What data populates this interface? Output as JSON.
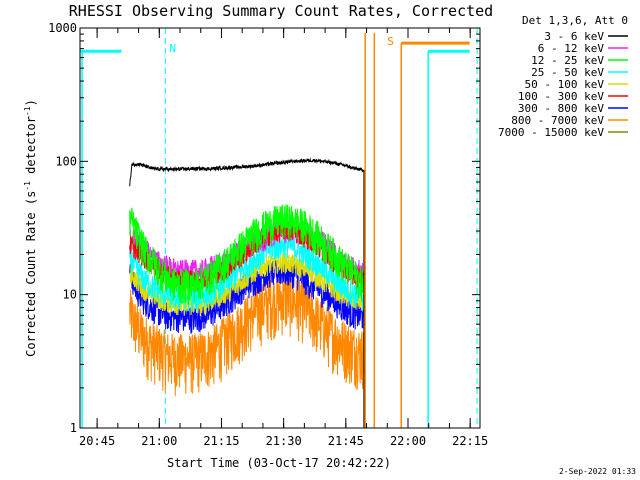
{
  "chart_data": {
    "type": "line",
    "title": "RHESSI Observing Summary Count Rates, Corrected",
    "xlabel": "Start Time (03-Oct-17 20:42:22)",
    "ylabel_main": "Corrected Count Rate (s",
    "ylabel_sup1": "-1",
    "ylabel_mid": " detector",
    "ylabel_sup2": "-1",
    "ylabel_end": ")",
    "y_scale": "log",
    "ylim": [
      1,
      1000
    ],
    "xlim_minutes_after_start": [
      -1.5,
      95
    ],
    "y_ticks": [
      {
        "value": 1,
        "label": "1"
      },
      {
        "value": 10,
        "label": "10"
      },
      {
        "value": 100,
        "label": "100"
      },
      {
        "value": 1000,
        "label": "1000"
      }
    ],
    "x_ticks": [
      {
        "value": 2.63,
        "label": "20:45"
      },
      {
        "value": 17.63,
        "label": "21:00"
      },
      {
        "value": 32.63,
        "label": "21:15"
      },
      {
        "value": 47.63,
        "label": "21:30"
      },
      {
        "value": 62.63,
        "label": "21:45"
      },
      {
        "value": 77.63,
        "label": "22:00"
      },
      {
        "value": 92.63,
        "label": "22:15"
      }
    ],
    "legend_header": "Det 1,3,6, Att 0",
    "legend_position": "top-right, outside plot",
    "grid": false,
    "series": [
      {
        "name": "3 - 6 keV",
        "color": "#000000",
        "x": [
          10.5,
          11,
          13,
          16,
          20,
          25,
          30,
          35,
          40,
          45,
          50,
          55,
          60,
          63,
          65,
          67
        ],
        "y": [
          65,
          95,
          95,
          88,
          87,
          88,
          88,
          90,
          92,
          96,
          100,
          102,
          97,
          92,
          88,
          86
        ]
      },
      {
        "name": "6 - 12 keV",
        "color": "#ee22ee",
        "x": [
          10.5,
          12,
          14,
          16,
          18,
          20,
          22,
          24,
          26,
          28,
          30,
          32,
          34,
          36,
          38,
          40,
          42,
          44,
          46,
          48,
          50,
          52,
          54,
          56,
          58,
          60,
          62,
          64,
          66,
          67
        ],
        "y": [
          26,
          25,
          22,
          19,
          17,
          16,
          15,
          15,
          15,
          15,
          16,
          17,
          18,
          20,
          22,
          24,
          26,
          28,
          30,
          31,
          31,
          30,
          28,
          26,
          23,
          20,
          18,
          16,
          15,
          14
        ]
      },
      {
        "name": "12 - 25 keV",
        "color": "#00ff00",
        "x": [
          10.5,
          12,
          14,
          16,
          18,
          20,
          22,
          24,
          26,
          28,
          30,
          32,
          34,
          36,
          38,
          40,
          42,
          44,
          46,
          48,
          50,
          52,
          54,
          56,
          58,
          60,
          62,
          64,
          66,
          67
        ],
        "y": [
          38,
          30,
          22,
          18,
          15,
          13,
          12,
          12,
          12,
          13,
          14,
          16,
          18,
          21,
          24,
          28,
          31,
          34,
          36,
          37,
          36,
          34,
          31,
          27,
          23,
          20,
          17,
          15,
          13,
          12
        ]
      },
      {
        "name": "25 - 50 keV",
        "color": "#00ffff",
        "x": [
          10.5,
          12,
          14,
          16,
          18,
          20,
          22,
          24,
          26,
          28,
          30,
          32,
          34,
          36,
          38,
          40,
          42,
          44,
          46,
          48,
          50,
          52,
          54,
          56,
          58,
          60,
          62,
          64,
          66,
          67
        ],
        "y": [
          19,
          16,
          13,
          11.5,
          10.5,
          10,
          9.5,
          9.5,
          9.5,
          10,
          10.5,
          11.5,
          12.5,
          14,
          16,
          18,
          20,
          22,
          23,
          24,
          23,
          21,
          19,
          17,
          15,
          13,
          11.5,
          10.5,
          10,
          9.5
        ]
      },
      {
        "name": "50 - 100 keV",
        "color": "#dddd00",
        "x": [
          10.5,
          12,
          14,
          16,
          18,
          20,
          22,
          24,
          26,
          28,
          30,
          32,
          34,
          36,
          38,
          40,
          42,
          44,
          46,
          48,
          50,
          52,
          54,
          56,
          58,
          60,
          62,
          64,
          66,
          67
        ],
        "y": [
          15,
          13,
          11,
          10,
          9.2,
          8.8,
          8.5,
          8.4,
          8.4,
          8.6,
          9,
          9.8,
          10.5,
          11.5,
          13,
          14.5,
          16,
          17,
          17.5,
          17.5,
          17,
          16,
          15,
          13.5,
          12,
          11,
          10,
          9.3,
          9,
          8.8
        ]
      },
      {
        "name": "100 - 300 keV",
        "color": "#ff0000",
        "x": [
          10.5,
          12,
          14,
          16,
          18,
          20,
          22,
          24,
          26,
          28,
          30,
          32,
          34,
          36,
          38,
          40,
          42,
          44,
          46,
          48,
          50,
          52,
          54,
          56,
          58,
          60,
          62,
          64,
          66,
          67
        ],
        "y": [
          24,
          22,
          19,
          17,
          15,
          14,
          13,
          13,
          13,
          13,
          14,
          15,
          16,
          18,
          20,
          23,
          26,
          28,
          30,
          31,
          30,
          28,
          26,
          23,
          20,
          17.5,
          16,
          14.5,
          13.5,
          13
        ]
      },
      {
        "name": "300 - 800 keV",
        "color": "#0000ff",
        "x": [
          10.5,
          12,
          14,
          16,
          18,
          20,
          22,
          24,
          26,
          28,
          30,
          32,
          34,
          36,
          38,
          40,
          42,
          44,
          46,
          48,
          50,
          52,
          54,
          56,
          58,
          60,
          62,
          64,
          66,
          67
        ],
        "y": [
          15,
          11,
          9,
          8,
          7.3,
          6.9,
          6.8,
          6.7,
          6.7,
          6.9,
          7.3,
          8,
          9,
          10,
          11.5,
          12.5,
          13.5,
          14.5,
          15,
          15,
          14.5,
          13.5,
          12,
          11,
          10,
          9,
          8,
          7.3,
          7,
          6.8
        ]
      },
      {
        "name": "800 - 7000 keV",
        "color": "#ff8800",
        "x": [
          10.5,
          12,
          14,
          16,
          18,
          20,
          22,
          24,
          26,
          28,
          30,
          32,
          34,
          36,
          38,
          40,
          42,
          44,
          46,
          48,
          50,
          52,
          54,
          56,
          58,
          60,
          62,
          64,
          66,
          67
        ],
        "y": [
          7.5,
          6,
          4.8,
          4.2,
          3.8,
          3.5,
          3.4,
          3.4,
          3.4,
          3.6,
          3.8,
          4.2,
          4.8,
          5.5,
          6.3,
          7.2,
          8,
          8.8,
          9.3,
          9.5,
          9.2,
          8.5,
          7.5,
          6.5,
          5.6,
          4.9,
          4.4,
          4,
          3.8,
          3.7
        ]
      },
      {
        "name": "7000 - 15000 keV",
        "color": "#888800",
        "x": [],
        "y": []
      }
    ],
    "annotations": {
      "night_label": "N",
      "saa_label": "S",
      "attenuator_level": 670,
      "saa_level": 770,
      "cyan_bars": [
        [
          -1.5,
          8.5
        ],
        [
          82.5,
          92.5
        ]
      ],
      "cyan_dashed_at": [
        19.1,
        94.3
      ],
      "cyan_solid_at": [
        -1.0,
        82.5
      ],
      "orange_bar": [
        76.0,
        92.5
      ],
      "orange_verticals": [
        67.3,
        69.5,
        76.0
      ]
    }
  },
  "footer_timestamp": "2-Sep-2022 01:33"
}
